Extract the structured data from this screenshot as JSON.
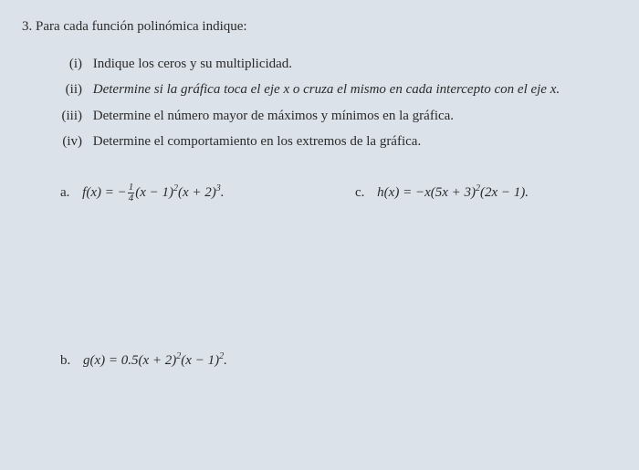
{
  "question": {
    "number": "3.",
    "prompt": "Para cada función polinómica indique:"
  },
  "subitems": [
    {
      "roman": "(i)",
      "text": "Indique los ceros y su multiplicidad."
    },
    {
      "roman": "(ii)",
      "text": "Determine si la gráfica toca el eje x o cruza el mismo en cada intercepto con el eje x."
    },
    {
      "roman": "(iii)",
      "text": "Determine el número mayor de máximos y mínimos en la gráfica."
    },
    {
      "roman": "(iv)",
      "text": "Determine el comportamiento en los extremos de la gráfica."
    }
  ],
  "functions": {
    "a": {
      "label": "a.",
      "lhs": "f(x) = ",
      "neg": "−",
      "frac_num": "1",
      "frac_den": "4",
      "rhs1": "(x − 1)",
      "exp1": "2",
      "rhs2": "(x + 2)",
      "exp2": "3",
      "period": "."
    },
    "c": {
      "label": "c.",
      "lhs": "h(x) = −x(5x + 3)",
      "exp1": "2",
      "rhs2": "(2x − 1).",
      "period": ""
    },
    "b": {
      "label": "b.",
      "lhs": "g(x) = 0.5(x + 2)",
      "exp1": "2",
      "rhs2": "(x − 1)",
      "exp2": "2",
      "period": "."
    }
  },
  "colors": {
    "background": "#dce2e9",
    "text": "#2a2a2a"
  },
  "typography": {
    "font_family": "Times New Roman",
    "body_fontsize": 15,
    "sup_fontsize": 10,
    "frac_fontsize": 11
  }
}
